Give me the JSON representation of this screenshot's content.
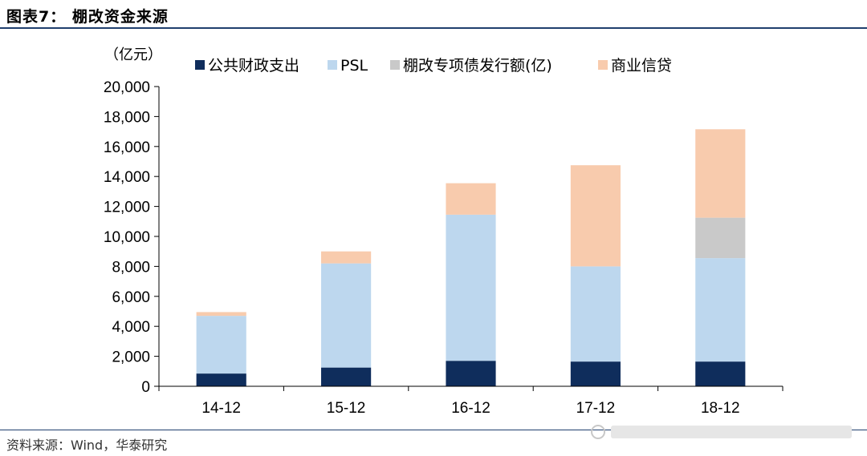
{
  "header": {
    "title": "图表7： 棚改资金来源"
  },
  "footer": {
    "source": "资料来源：Wind，华泰研究"
  },
  "chart_data": {
    "type": "bar",
    "stacked": true,
    "title": "",
    "xlabel": "",
    "ylabel": "（亿元）",
    "ylim": [
      0,
      20000
    ],
    "yticks": [
      0,
      2000,
      4000,
      6000,
      8000,
      10000,
      12000,
      14000,
      16000,
      18000,
      20000
    ],
    "ytick_labels": [
      "0",
      "2,000",
      "4,000",
      "6,000",
      "8,000",
      "10,000",
      "12,000",
      "14,000",
      "16,000",
      "18,000",
      "20,000"
    ],
    "categories": [
      "14-12",
      "15-12",
      "16-12",
      "17-12",
      "18-12"
    ],
    "grid": false,
    "legend_position": "top",
    "series": [
      {
        "name": "公共财政支出",
        "color": "#0f2d5c",
        "values": [
          850,
          1250,
          1700,
          1650,
          1650
        ]
      },
      {
        "name": "PSL",
        "color": "#bdd7ee",
        "values": [
          3850,
          6950,
          9750,
          6350,
          6900
        ]
      },
      {
        "name": "棚改专项债发行额(亿)",
        "color": "#c9c9c9",
        "values": [
          0,
          0,
          0,
          0,
          2700
        ]
      },
      {
        "name": "商业信贷",
        "color": "#f8cbad",
        "values": [
          250,
          800,
          2100,
          6750,
          5900
        ]
      }
    ]
  }
}
